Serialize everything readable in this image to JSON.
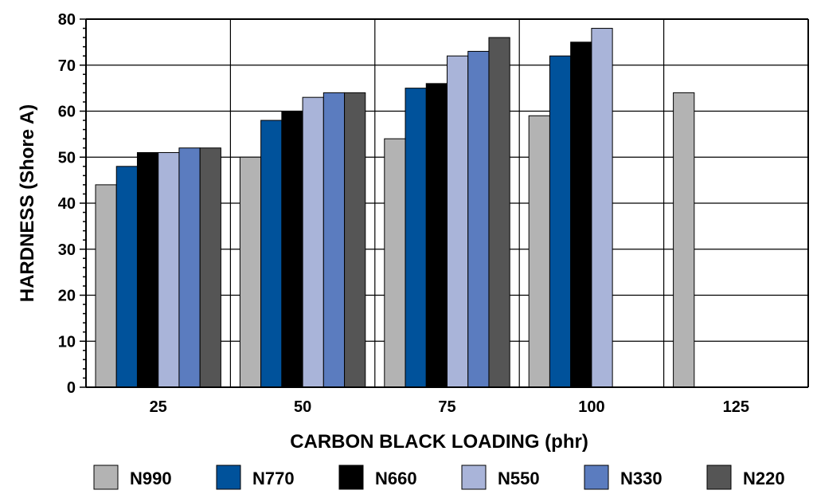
{
  "chart_data": {
    "type": "bar",
    "title": "",
    "xlabel": "CARBON BLACK LOADING (phr)",
    "ylabel": "HARDNESS (Shore A)",
    "ylim": [
      0,
      80
    ],
    "yticks": [
      "0",
      "10",
      "20",
      "30",
      "40",
      "50",
      "60",
      "70",
      "80"
    ],
    "categories": [
      "25",
      "50",
      "75",
      "100",
      "125"
    ],
    "grid": true,
    "legend_position": "bottom",
    "series": [
      {
        "name": "N990",
        "color": "#b3b3b3",
        "values": [
          44,
          50,
          54,
          59,
          64
        ]
      },
      {
        "name": "N770",
        "color": "#00529b",
        "values": [
          48,
          58,
          65,
          72,
          null
        ]
      },
      {
        "name": "N660",
        "color": "#000000",
        "values": [
          51,
          60,
          66,
          75,
          null
        ]
      },
      {
        "name": "N550",
        "color": "#a9b4d9",
        "values": [
          51,
          63,
          72,
          78,
          null
        ]
      },
      {
        "name": "N330",
        "color": "#5b7cbf",
        "values": [
          52,
          64,
          73,
          null,
          null
        ]
      },
      {
        "name": "N220",
        "color": "#555555",
        "values": [
          52,
          64,
          76,
          null,
          null
        ]
      }
    ]
  }
}
